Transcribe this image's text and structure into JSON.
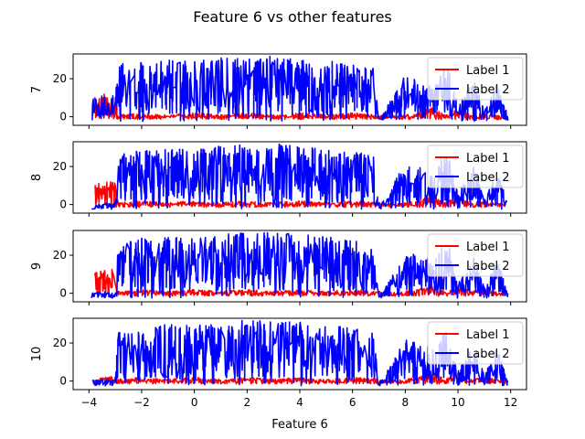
{
  "chart_data": {
    "type": "line",
    "title": "Feature 6 vs other features",
    "xlabel": "Feature 6",
    "xlim": [
      -4.6,
      12.6
    ],
    "xticks": [
      -4,
      -2,
      0,
      2,
      4,
      6,
      8,
      10,
      12
    ],
    "xtick_labels": [
      "−4",
      "−2",
      "0",
      "2",
      "4",
      "6",
      "8",
      "10",
      "12"
    ],
    "sharex": true,
    "grid": false,
    "legend_position": "top-right",
    "subplots": [
      {
        "ylabel": "7",
        "ylim": [
          -4.5,
          33
        ],
        "yticks": [
          0,
          20
        ],
        "series": [
          {
            "name": "Label 1",
            "color": "#ff0000",
            "points": [
              [
                -3.8,
                11
              ],
              [
                -3.4,
                12
              ],
              [
                -3.0,
                12
              ],
              [
                -2.9,
                1
              ],
              [
                -2.0,
                2
              ],
              [
                -1.0,
                1
              ],
              [
                0.0,
                2
              ],
              [
                1.0,
                1
              ],
              [
                2.0,
                2
              ],
              [
                3.0,
                1
              ],
              [
                4.0,
                2
              ],
              [
                5.0,
                1
              ],
              [
                6.0,
                2
              ],
              [
                7.0,
                1
              ],
              [
                7.5,
                0
              ],
              [
                8.5,
                2
              ],
              [
                9.0,
                5
              ],
              [
                9.5,
                1
              ],
              [
                10.0,
                4
              ],
              [
                10.5,
                1
              ],
              [
                11.0,
                2
              ],
              [
                11.8,
                0
              ]
            ]
          },
          {
            "name": "Label 2",
            "color": "#0000ff",
            "points": [
              [
                -3.9,
                10
              ],
              [
                -3.4,
                12
              ],
              [
                -3.0,
                11
              ],
              [
                -2.9,
                28
              ],
              [
                -2.0,
                29
              ],
              [
                -1.0,
                30
              ],
              [
                0.0,
                29
              ],
              [
                1.0,
                31
              ],
              [
                2.0,
                32
              ],
              [
                3.0,
                32
              ],
              [
                4.0,
                31
              ],
              [
                5.0,
                30
              ],
              [
                6.0,
                28
              ],
              [
                6.8,
                26
              ],
              [
                7.0,
                -2
              ],
              [
                8.0,
                22
              ],
              [
                8.6,
                20
              ],
              [
                9.0,
                17
              ],
              [
                9.6,
                28
              ],
              [
                10.0,
                6
              ],
              [
                10.6,
                20
              ],
              [
                11.0,
                3
              ],
              [
                11.5,
                18
              ],
              [
                11.9,
                0
              ]
            ]
          }
        ]
      },
      {
        "ylabel": "8",
        "ylim": [
          -4.5,
          33
        ],
        "yticks": [
          0,
          20
        ],
        "series": [
          {
            "name": "Label 1",
            "color": "#ff0000",
            "points": [
              [
                -3.8,
                11
              ],
              [
                -3.4,
                12
              ],
              [
                -3.0,
                13
              ],
              [
                -2.9,
                1
              ],
              [
                -2.0,
                2
              ],
              [
                -1.0,
                1
              ],
              [
                0.0,
                2
              ],
              [
                1.0,
                1
              ],
              [
                2.0,
                2
              ],
              [
                3.0,
                1
              ],
              [
                4.0,
                2
              ],
              [
                5.0,
                1
              ],
              [
                6.0,
                2
              ],
              [
                7.0,
                1
              ],
              [
                7.5,
                0
              ],
              [
                8.5,
                2
              ],
              [
                9.0,
                5
              ],
              [
                9.5,
                1
              ],
              [
                10.0,
                4
              ],
              [
                10.5,
                1
              ],
              [
                11.0,
                2
              ],
              [
                11.8,
                0
              ]
            ]
          },
          {
            "name": "Label 2",
            "color": "#0000ff",
            "points": [
              [
                -3.9,
                0
              ],
              [
                -3.4,
                1
              ],
              [
                -3.0,
                0
              ],
              [
                -2.9,
                27
              ],
              [
                -2.0,
                29
              ],
              [
                -1.0,
                30
              ],
              [
                0.0,
                29
              ],
              [
                1.0,
                31
              ],
              [
                2.0,
                32
              ],
              [
                3.0,
                32
              ],
              [
                4.0,
                31
              ],
              [
                5.0,
                30
              ],
              [
                6.0,
                28
              ],
              [
                6.8,
                26
              ],
              [
                7.0,
                -2
              ],
              [
                8.0,
                22
              ],
              [
                8.6,
                20
              ],
              [
                9.0,
                17
              ],
              [
                9.6,
                28
              ],
              [
                10.0,
                6
              ],
              [
                10.6,
                20
              ],
              [
                11.0,
                3
              ],
              [
                11.5,
                18
              ],
              [
                11.9,
                0
              ]
            ]
          }
        ]
      },
      {
        "ylabel": "9",
        "ylim": [
          -4.5,
          33
        ],
        "yticks": [
          0,
          20
        ],
        "series": [
          {
            "name": "Label 1",
            "color": "#ff0000",
            "points": [
              [
                -3.8,
                11
              ],
              [
                -3.4,
                12
              ],
              [
                -3.0,
                13
              ],
              [
                -2.9,
                1
              ],
              [
                -2.0,
                2
              ],
              [
                -1.0,
                1
              ],
              [
                0.0,
                2
              ],
              [
                1.0,
                1
              ],
              [
                2.0,
                2
              ],
              [
                3.0,
                1
              ],
              [
                4.0,
                2
              ],
              [
                5.0,
                1
              ],
              [
                6.0,
                2
              ],
              [
                7.0,
                1
              ],
              [
                7.5,
                0
              ],
              [
                8.5,
                2
              ],
              [
                9.0,
                5
              ],
              [
                9.5,
                1
              ],
              [
                10.0,
                4
              ],
              [
                10.5,
                1
              ],
              [
                11.0,
                2
              ],
              [
                11.8,
                0
              ]
            ]
          },
          {
            "name": "Label 2",
            "color": "#0000ff",
            "points": [
              [
                -3.9,
                0
              ],
              [
                -3.4,
                1
              ],
              [
                -3.0,
                0
              ],
              [
                -2.9,
                27
              ],
              [
                -2.0,
                29
              ],
              [
                -1.0,
                30
              ],
              [
                0.0,
                29
              ],
              [
                1.0,
                31
              ],
              [
                2.0,
                32
              ],
              [
                3.0,
                32
              ],
              [
                4.0,
                31
              ],
              [
                5.0,
                30
              ],
              [
                6.0,
                28
              ],
              [
                6.8,
                26
              ],
              [
                7.0,
                -2
              ],
              [
                8.0,
                22
              ],
              [
                8.6,
                20
              ],
              [
                9.0,
                17
              ],
              [
                9.6,
                28
              ],
              [
                10.0,
                6
              ],
              [
                10.6,
                20
              ],
              [
                11.0,
                3
              ],
              [
                11.5,
                18
              ],
              [
                11.9,
                0
              ]
            ]
          }
        ]
      },
      {
        "ylabel": "10",
        "ylim": [
          -4.5,
          33
        ],
        "yticks": [
          0,
          20
        ],
        "series": [
          {
            "name": "Label 1",
            "color": "#ff0000",
            "points": [
              [
                -3.8,
                0
              ],
              [
                -3.4,
                3
              ],
              [
                -3.0,
                2
              ],
              [
                -2.9,
                1
              ],
              [
                -2.0,
                2
              ],
              [
                -1.0,
                1
              ],
              [
                0.0,
                2
              ],
              [
                1.0,
                1
              ],
              [
                2.0,
                2
              ],
              [
                3.0,
                1
              ],
              [
                4.0,
                2
              ],
              [
                5.0,
                1
              ],
              [
                6.0,
                2
              ],
              [
                7.0,
                1
              ],
              [
                7.5,
                0
              ],
              [
                8.5,
                2
              ],
              [
                9.0,
                5
              ],
              [
                9.5,
                1
              ],
              [
                10.0,
                4
              ],
              [
                10.5,
                1
              ],
              [
                11.0,
                2
              ],
              [
                11.8,
                0
              ]
            ]
          },
          {
            "name": "Label 2",
            "color": "#0000ff",
            "points": [
              [
                -3.9,
                0
              ],
              [
                -3.4,
                1
              ],
              [
                -3.0,
                0
              ],
              [
                -2.9,
                27
              ],
              [
                -2.0,
                29
              ],
              [
                -1.0,
                30
              ],
              [
                0.0,
                29
              ],
              [
                1.0,
                31
              ],
              [
                2.0,
                32
              ],
              [
                3.0,
                32
              ],
              [
                4.0,
                31
              ],
              [
                5.0,
                30
              ],
              [
                6.0,
                28
              ],
              [
                6.8,
                26
              ],
              [
                7.0,
                -2
              ],
              [
                8.0,
                22
              ],
              [
                8.6,
                20
              ],
              [
                9.0,
                17
              ],
              [
                9.6,
                28
              ],
              [
                10.0,
                6
              ],
              [
                10.6,
                20
              ],
              [
                11.0,
                3
              ],
              [
                11.5,
                18
              ],
              [
                11.9,
                0
              ]
            ]
          }
        ]
      }
    ]
  }
}
